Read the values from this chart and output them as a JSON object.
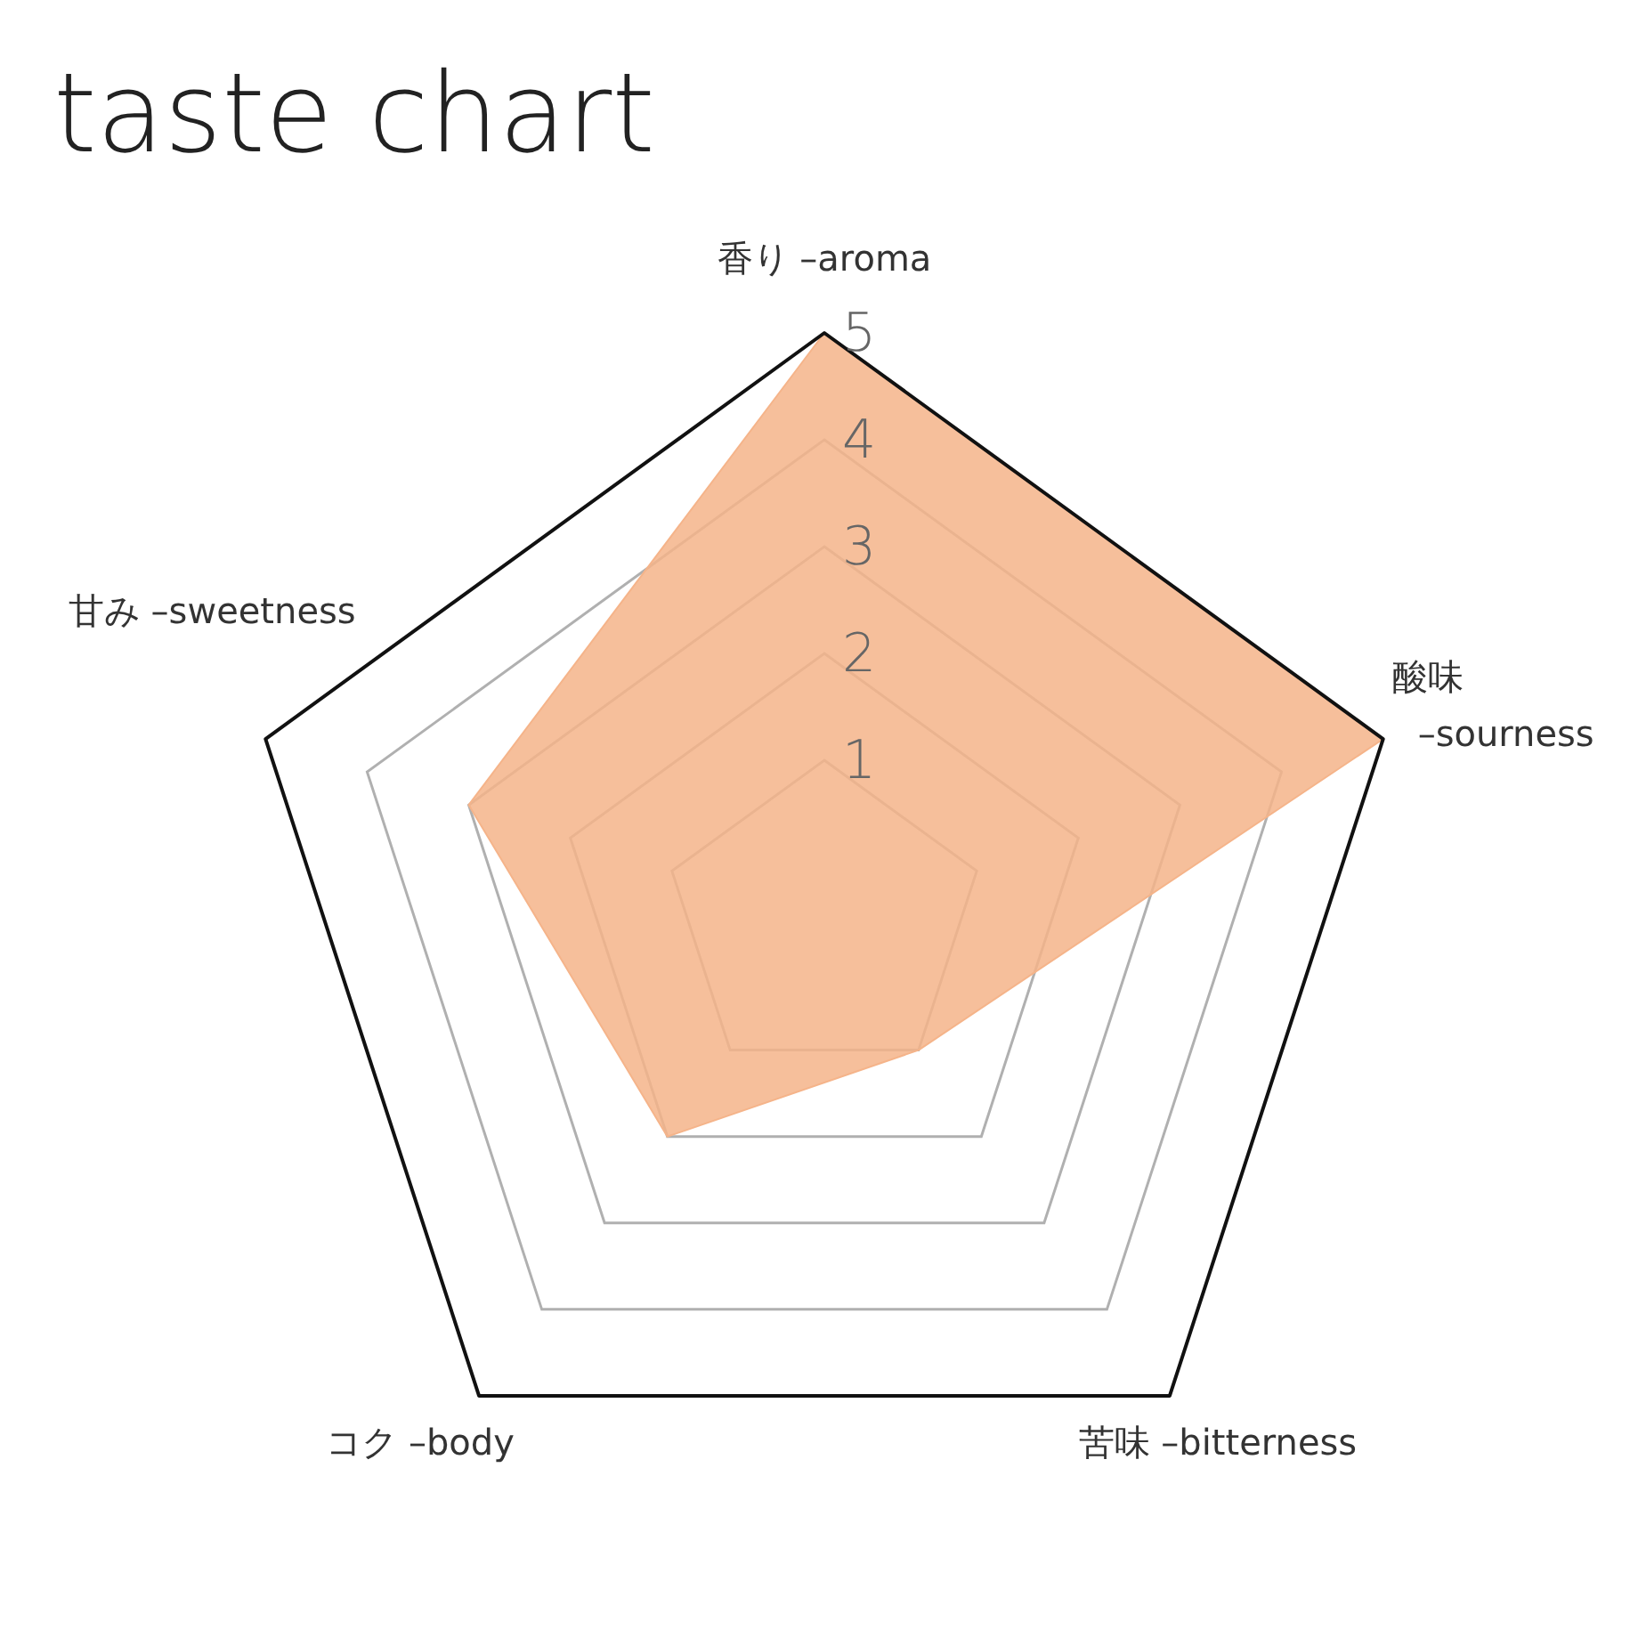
{
  "chart_data": {
    "type": "radar",
    "title": "taste chart",
    "categories": [
      "香り –aroma",
      "酸味\n–sourness",
      "苦味 –bitterness",
      "コク –body",
      "甘み –sweetness"
    ],
    "series": [
      {
        "color": "#f5b48a",
        "values": [
          5,
          5,
          1,
          2,
          3
        ]
      }
    ],
    "ylim": [
      -0.5,
      5
    ],
    "yticks": [
      1,
      2,
      3,
      4,
      5
    ],
    "grid": true
  }
}
